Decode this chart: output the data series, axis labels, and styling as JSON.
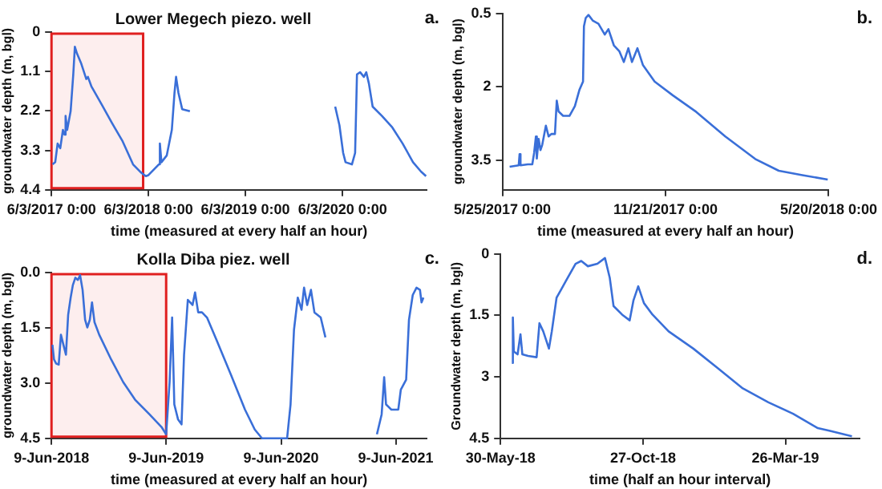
{
  "chart_data": [
    {
      "type": "line",
      "title": "Lower Megech piezo. well",
      "xlabel": "time (measured at every half an hour)",
      "ylabel": "groundwater depth (m, bgl)",
      "color": "#3a6fd8",
      "annotations": [
        "a."
      ],
      "x": [
        "2017-06-07",
        "2017-06-17",
        "2017-06-26",
        "2017-07-06",
        "2017-07-16",
        "2017-07-22",
        "2017-07-26",
        "2017-08-01",
        "2017-08-14",
        "2017-08-24",
        "2017-08-30",
        "2017-09-07",
        "2017-09-22",
        "2017-10-12",
        "2017-10-18",
        "2017-10-31",
        "2017-12-09",
        "2018-01-17",
        "2018-02-26",
        "2018-04-06",
        "2018-05-05",
        "2018-05-24",
        "2018-06-03",
        "2018-07-12",
        "2018-07-16",
        "2018-07-22",
        "2018-08-11",
        "2018-08-30",
        "2018-09-09",
        "2018-09-15",
        "2018-09-24",
        "2018-10-08",
        "2018-11-06",
        "2019-06-01",
        "2020-05-06",
        "2020-05-22",
        "2020-06-05",
        "2020-06-14",
        "2020-07-08",
        "2020-07-20",
        "2020-07-27",
        "2020-08-08",
        "2020-08-22",
        "2020-08-31",
        "2020-09-10",
        "2020-09-24",
        "2020-10-29",
        "2020-12-07",
        "2021-01-15",
        "2021-02-23",
        "2021-03-25",
        "2021-04-13"
      ],
      "values": [
        3.69,
        3.63,
        3.11,
        3.24,
        2.73,
        2.86,
        2.34,
        2.73,
        2.21,
        1.18,
        0.41,
        0.6,
        0.86,
        1.31,
        1.25,
        1.51,
        2.02,
        2.54,
        3.05,
        3.69,
        3.91,
        4.02,
        3.99,
        3.69,
        3.11,
        3.63,
        3.44,
        2.73,
        1.7,
        1.25,
        1.7,
        2.15,
        2.21,
        null,
        2.08,
        2.6,
        3.37,
        3.63,
        3.69,
        3.37,
        1.18,
        1.12,
        1.25,
        1.12,
        1.44,
        2.08,
        2.34,
        2.66,
        3.11,
        3.63,
        3.89,
        4.02
      ],
      "xlim": [
        "2017-06-03",
        "2021-04-15"
      ],
      "ylim": [
        4.4,
        0
      ],
      "xticks": [
        {
          "value": "2017-06-03",
          "label": "6/3/2017 0:00"
        },
        {
          "value": "2018-06-03",
          "label": "6/3/2018 0:00"
        },
        {
          "value": "2019-06-03",
          "label": "6/3/2019 0:00"
        },
        {
          "value": "2020-06-03",
          "label": "6/3/2020 0:00"
        }
      ],
      "yticks": [
        0,
        1.1,
        2.2,
        3.3,
        4.4
      ],
      "bands": [
        {
          "axis": "x",
          "from": "2017-06-03",
          "to": "2018-05-14",
          "color": "#e02020"
        }
      ]
    },
    {
      "type": "line",
      "xlabel": "time (measured at every half an hour)",
      "ylabel": "groundwater depth (m, bgl)",
      "color": "#3a6fd8",
      "annotations": [
        "b."
      ],
      "x": [
        "2017-06-02",
        "2017-06-12",
        "2017-06-13",
        "2017-06-14",
        "2017-06-22",
        "2017-06-27",
        "2017-06-29",
        "2017-07-01",
        "2017-07-02",
        "2017-07-04",
        "2017-07-06",
        "2017-07-08",
        "2017-07-12",
        "2017-07-15",
        "2017-07-18",
        "2017-07-22",
        "2017-07-24",
        "2017-07-26",
        "2017-07-31",
        "2017-08-07",
        "2017-08-13",
        "2017-08-18",
        "2017-08-22",
        "2017-08-23",
        "2017-08-25",
        "2017-08-28",
        "2017-09-02",
        "2017-09-08",
        "2017-09-15",
        "2017-09-19",
        "2017-09-25",
        "2017-10-01",
        "2017-10-06",
        "2017-10-11",
        "2017-10-15",
        "2017-10-21",
        "2017-10-27",
        "2017-11-09",
        "2017-11-29",
        "2017-12-25",
        "2018-01-26",
        "2018-02-28",
        "2018-03-26",
        "2018-04-21",
        "2018-05-19"
      ],
      "values": [
        3.63,
        3.6,
        3.37,
        3.6,
        3.58,
        3.58,
        3.35,
        3.01,
        3.46,
        3.06,
        3.29,
        3.18,
        2.79,
        3.01,
        2.96,
        2.96,
        2.28,
        2.5,
        2.59,
        2.59,
        2.39,
        2.06,
        1.89,
        0.76,
        0.59,
        0.53,
        0.65,
        0.71,
        0.93,
        0.82,
        1.15,
        1.27,
        1.49,
        1.21,
        1.49,
        1.21,
        1.55,
        1.89,
        2.17,
        2.51,
        3.01,
        3.47,
        3.71,
        3.8,
        3.89
      ],
      "xlim": [
        "2017-05-25",
        "2018-05-20"
      ],
      "ylim": [
        4.1,
        0.5
      ],
      "xticks": [
        {
          "value": "2017-05-25",
          "label": "5/25/2017 0:00"
        },
        {
          "value": "2017-11-21",
          "label": "11/21/2017 0:00"
        },
        {
          "value": "2018-05-20",
          "label": "5/20/2018 0:00"
        }
      ],
      "yticks": [
        0.5,
        2,
        3.5
      ]
    },
    {
      "type": "line",
      "title": "Kolla Diba piez. well",
      "xlabel": "time (measured at every half an hour)",
      "ylabel": "groundwater depth (m, bgl)",
      "color": "#3a6fd8",
      "annotations": [
        "c."
      ],
      "x": [
        "2018-06-12",
        "2018-06-17",
        "2018-06-24",
        "2018-07-02",
        "2018-07-09",
        "2018-07-17",
        "2018-07-25",
        "2018-08-01",
        "2018-08-09",
        "2018-08-16",
        "2018-08-24",
        "2018-09-01",
        "2018-09-08",
        "2018-09-16",
        "2018-09-24",
        "2018-10-01",
        "2018-10-09",
        "2018-10-16",
        "2018-10-24",
        "2018-11-08",
        "2018-12-16",
        "2019-01-23",
        "2019-03-02",
        "2019-04-17",
        "2019-05-25",
        "2019-06-09",
        "2019-06-20",
        "2019-06-28",
        "2019-07-05",
        "2019-07-17",
        "2019-07-28",
        "2019-08-05",
        "2019-08-17",
        "2019-09-01",
        "2019-09-09",
        "2019-09-19",
        "2019-10-01",
        "2019-10-17",
        "2019-11-16",
        "2020-01-01",
        "2020-02-15",
        "2020-03-17",
        "2020-04-09",
        "2020-05-24",
        "2020-06-28",
        "2020-07-09",
        "2020-07-20",
        "2020-08-01",
        "2020-08-13",
        "2020-08-21",
        "2020-08-31",
        "2020-09-12",
        "2020-09-23",
        "2020-10-13",
        "2020-10-28",
        "2021-01-15",
        "2021-04-10",
        "2021-04-25",
        "2021-05-03",
        "2021-05-09",
        "2021-05-26",
        "2021-06-17",
        "2021-06-25",
        "2021-07-12",
        "2021-07-21",
        "2021-08-02",
        "2021-08-14",
        "2021-08-25",
        "2021-08-30",
        "2021-09-05"
      ],
      "values": [
        1.96,
        2.36,
        2.47,
        2.5,
        1.69,
        1.96,
        2.23,
        1.15,
        0.68,
        0.34,
        0.14,
        0.2,
        0.07,
        0.47,
        1.28,
        1.49,
        1.28,
        0.81,
        1.35,
        1.69,
        2.36,
        2.97,
        3.45,
        3.85,
        4.19,
        4.39,
        2.97,
        1.22,
        3.58,
        3.99,
        4.12,
        2.23,
        0.74,
        0.88,
        0.54,
        1.08,
        1.08,
        1.22,
        1.82,
        2.77,
        3.72,
        4.26,
        4.5,
        4.5,
        4.5,
        3.58,
        1.55,
        0.68,
        1.01,
        0.41,
        0.88,
        0.47,
        1.08,
        1.22,
        1.76,
        null,
        4.39,
        3.85,
        2.84,
        3.58,
        3.72,
        3.72,
        3.18,
        2.91,
        1.28,
        0.61,
        0.41,
        0.47,
        0.81,
        0.68
      ],
      "xlim": [
        "2018-06-09",
        "2021-09-15"
      ],
      "ylim": [
        4.5,
        0
      ],
      "xticks": [
        {
          "value": "2018-06-09",
          "label": "9-Jun-2018"
        },
        {
          "value": "2019-06-09",
          "label": "9-Jun-2019"
        },
        {
          "value": "2020-06-09",
          "label": "9-Jun-2020"
        },
        {
          "value": "2021-06-09",
          "label": "9-Jun-2021"
        }
      ],
      "yticks": [
        {
          "value": 0,
          "label": "0.0"
        },
        {
          "value": 1.5,
          "label": "1.5"
        },
        {
          "value": 3,
          "label": "3.0"
        },
        {
          "value": 4.5,
          "label": "4.5"
        }
      ],
      "bands": [
        {
          "axis": "x",
          "from": "2018-06-09",
          "to": "2019-06-09",
          "color": "#e02020"
        }
      ]
    },
    {
      "type": "line",
      "xlabel": "time (half an hour interval)",
      "ylabel": "Groundwater depth (m, bgl)",
      "color": "#3a6fd8",
      "annotations": [
        "d."
      ],
      "x": [
        "2018-06-11",
        "2018-06-12",
        "2018-06-13",
        "2018-06-17",
        "2018-06-20",
        "2018-06-22",
        "2018-06-28",
        "2018-07-07",
        "2018-07-10",
        "2018-07-14",
        "2018-07-20",
        "2018-07-23",
        "2018-07-28",
        "2018-08-02",
        "2018-08-07",
        "2018-08-17",
        "2018-08-23",
        "2018-08-30",
        "2018-09-09",
        "2018-09-17",
        "2018-09-22",
        "2018-09-26",
        "2018-10-05",
        "2018-10-13",
        "2018-10-17",
        "2018-10-22",
        "2018-10-28",
        "2018-11-06",
        "2018-11-23",
        "2018-12-19",
        "2019-01-14",
        "2019-02-09",
        "2019-03-08",
        "2019-04-03",
        "2019-04-29",
        "2019-05-12",
        "2019-06-04"
      ],
      "values": [
        2.66,
        1.55,
        2.38,
        2.45,
        1.96,
        2.45,
        2.49,
        2.52,
        1.69,
        1.89,
        2.31,
        1.89,
        1.07,
        0.86,
        0.65,
        0.24,
        0.17,
        0.3,
        0.24,
        0.1,
        0.58,
        1.27,
        1.48,
        1.62,
        1.13,
        0.79,
        1.2,
        1.48,
        1.89,
        2.31,
        2.79,
        3.28,
        3.62,
        3.9,
        4.25,
        4.32,
        4.45
      ],
      "xlim": [
        "2018-05-30",
        "2019-06-12"
      ],
      "ylim": [
        4.5,
        0
      ],
      "xticks": [
        {
          "value": "2018-05-30",
          "label": "30-May-18"
        },
        {
          "value": "2018-10-27",
          "label": "27-Oct-18"
        },
        {
          "value": "2019-03-26",
          "label": "26-Mar-19"
        }
      ],
      "yticks": [
        0,
        1.5,
        3,
        4.5
      ]
    }
  ]
}
